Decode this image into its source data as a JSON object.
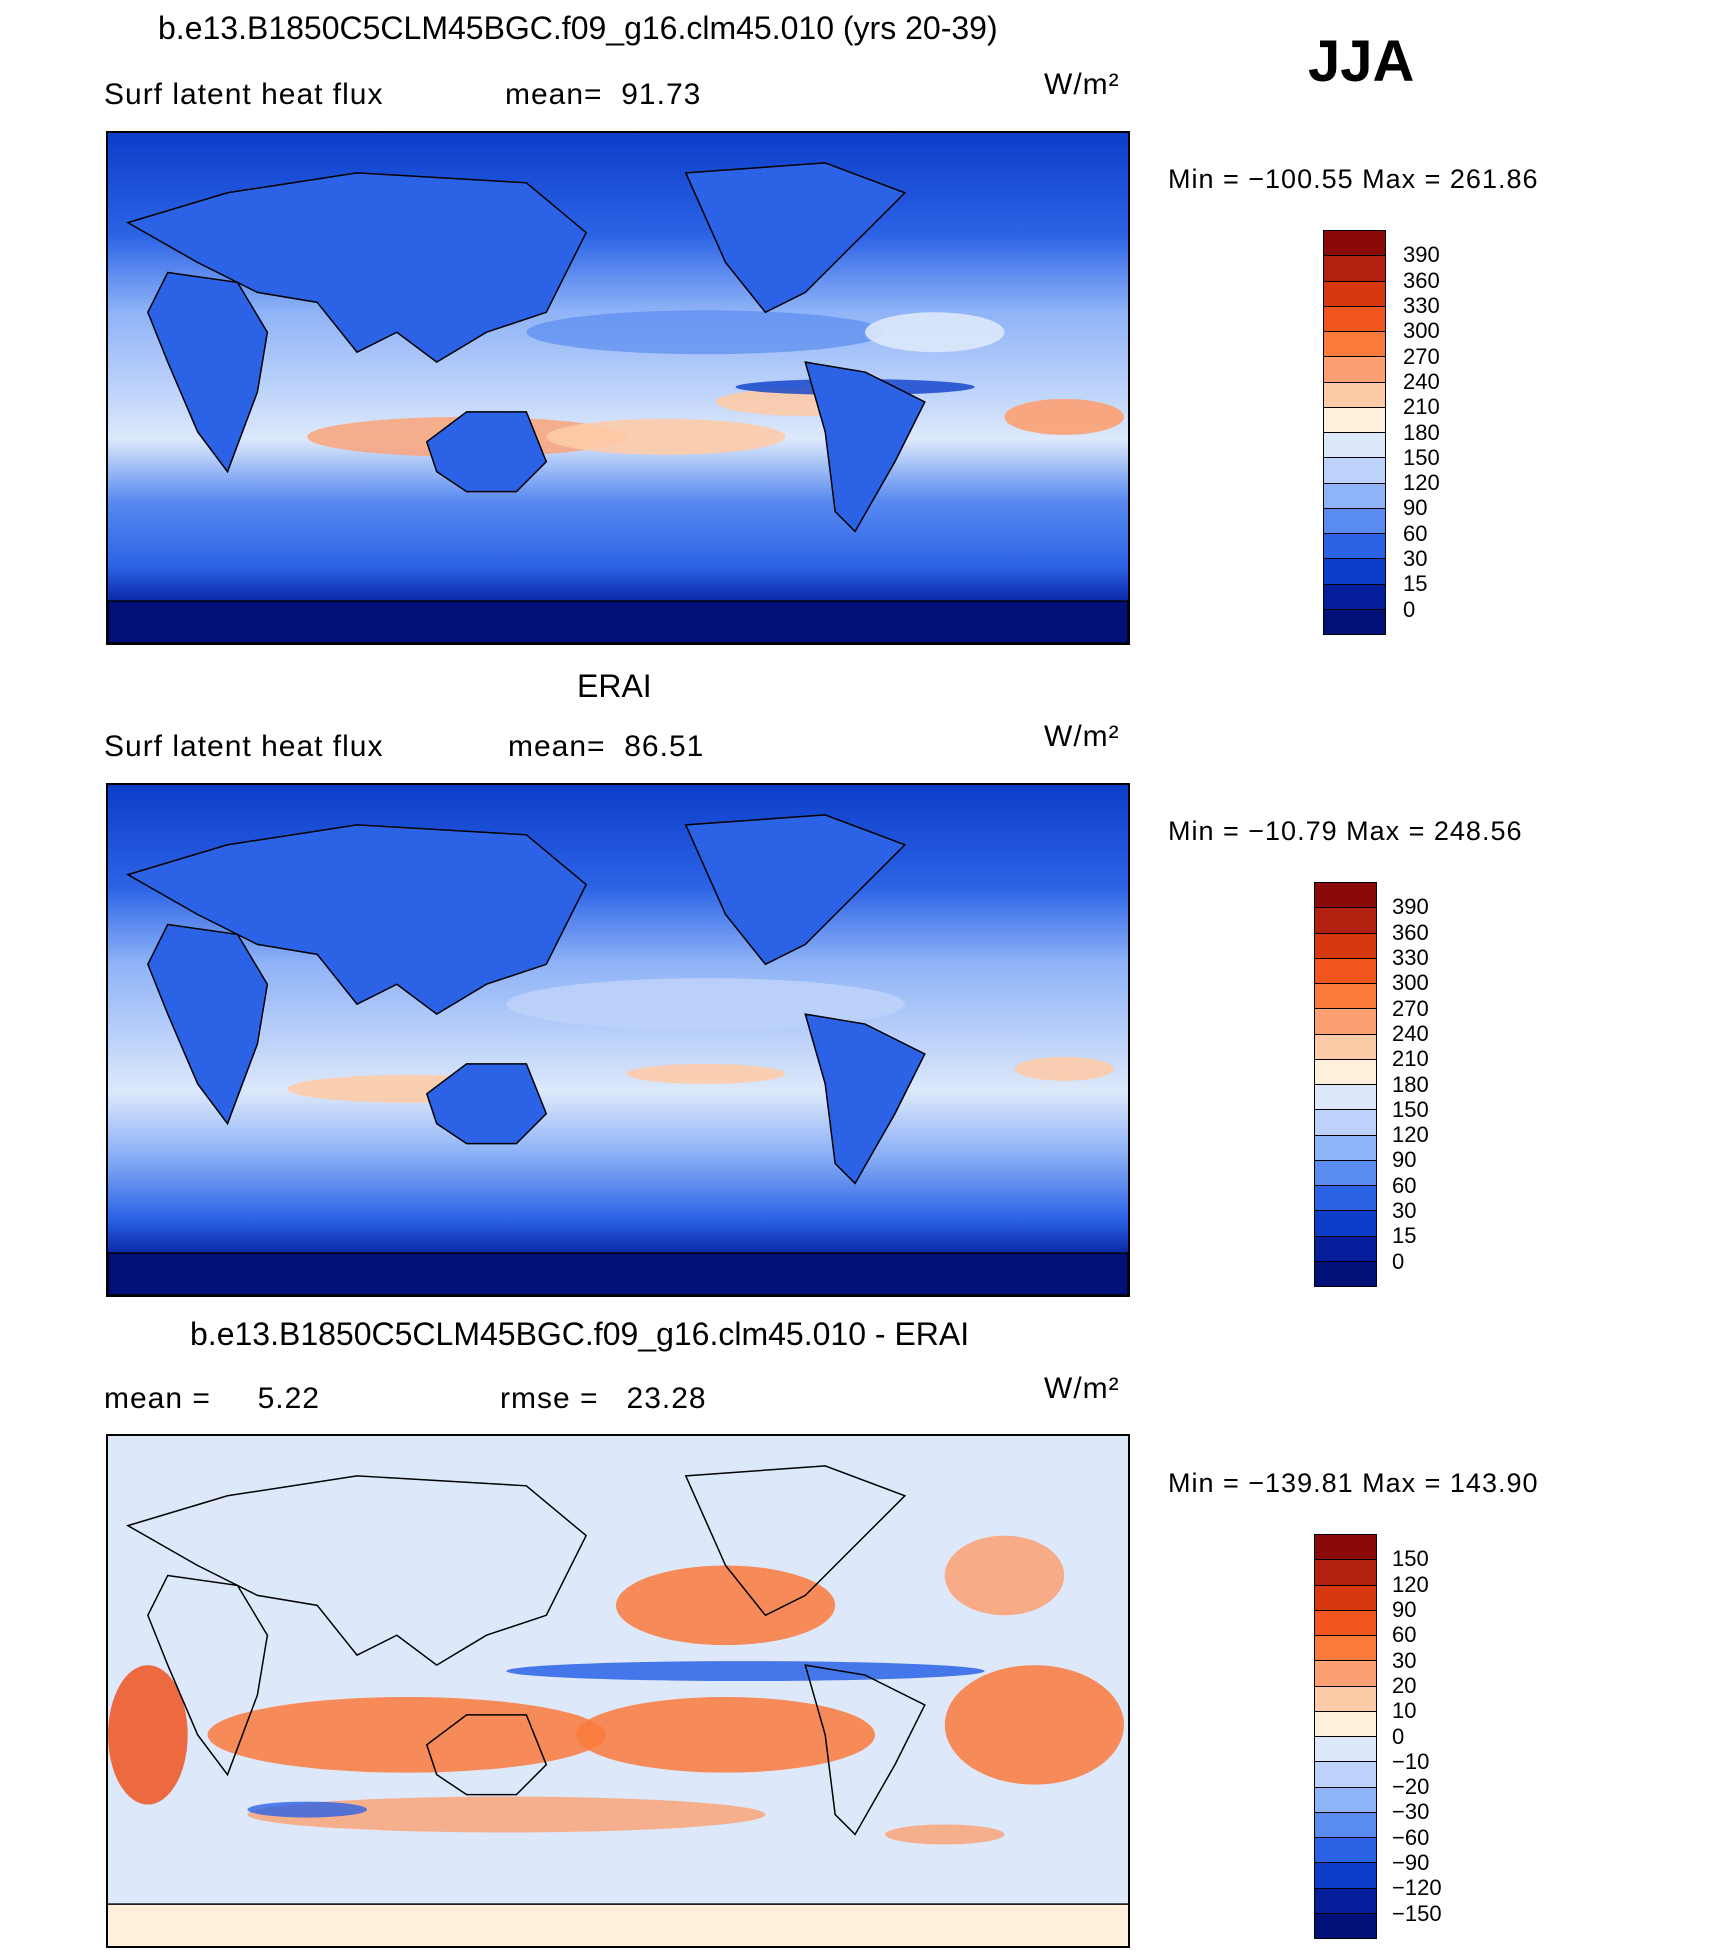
{
  "season": "JJA",
  "panels": [
    {
      "title": "b.e13.B1850C5CLM45BGC.f09_g16.clm45.010 (yrs 20-39)",
      "left_text": "Surf latent heat flux",
      "mid_text": "mean=  91.73",
      "units": "W/m²",
      "minmax": "Min = −100.55 Max = 261.86",
      "colorbar_labels": [
        "390",
        "360",
        "330",
        "300",
        "270",
        "240",
        "210",
        "180",
        "150",
        "120",
        "90",
        "60",
        "30",
        "15",
        "0"
      ],
      "colorbar_colors": [
        "#8a0a0a",
        "#b4200f",
        "#d6380f",
        "#f0541f",
        "#fa7a3c",
        "#fca072",
        "#fdcba8",
        "#fff0dc",
        "#dde9fb",
        "#bcd2fa",
        "#8fb3f7",
        "#5a8bf0",
        "#2c63e6",
        "#0c3ec9",
        "#041e9c",
        "#02107a"
      ],
      "map_style": "model"
    },
    {
      "title": "ERAI",
      "left_text": "Surf latent heat flux",
      "mid_text": "mean=  86.51",
      "units": "W/m²",
      "minmax": "Min = −10.79 Max = 248.56",
      "colorbar_labels": [
        "390",
        "360",
        "330",
        "300",
        "270",
        "240",
        "210",
        "180",
        "150",
        "120",
        "90",
        "60",
        "30",
        "15",
        "0"
      ],
      "colorbar_colors": [
        "#8a0a0a",
        "#b4200f",
        "#d6380f",
        "#f0541f",
        "#fa7a3c",
        "#fca072",
        "#fdcba8",
        "#fff0dc",
        "#dde9fb",
        "#bcd2fa",
        "#8fb3f7",
        "#5a8bf0",
        "#2c63e6",
        "#0c3ec9",
        "#041e9c",
        "#02107a"
      ],
      "map_style": "obs"
    },
    {
      "title": "b.e13.B1850C5CLM45BGC.f09_g16.clm45.010 - ERAI",
      "left_text": "mean =     5.22",
      "mid_text": "rmse =   23.28",
      "units": "W/m²",
      "minmax": "Min = −139.81 Max = 143.90",
      "colorbar_labels": [
        "150",
        "120",
        "90",
        "60",
        "30",
        "20",
        "10",
        "0",
        "−10",
        "−20",
        "−30",
        "−60",
        "−90",
        "−120",
        "−150"
      ],
      "colorbar_colors": [
        "#8a0a0a",
        "#b4200f",
        "#d6380f",
        "#f0541f",
        "#fa7a3c",
        "#fca072",
        "#fdcba8",
        "#fff0dc",
        "#dde9fb",
        "#bcd2fa",
        "#8fb3f7",
        "#5a8bf0",
        "#2c63e6",
        "#0c3ec9",
        "#041e9c",
        "#02107a"
      ],
      "map_style": "diff"
    }
  ]
}
